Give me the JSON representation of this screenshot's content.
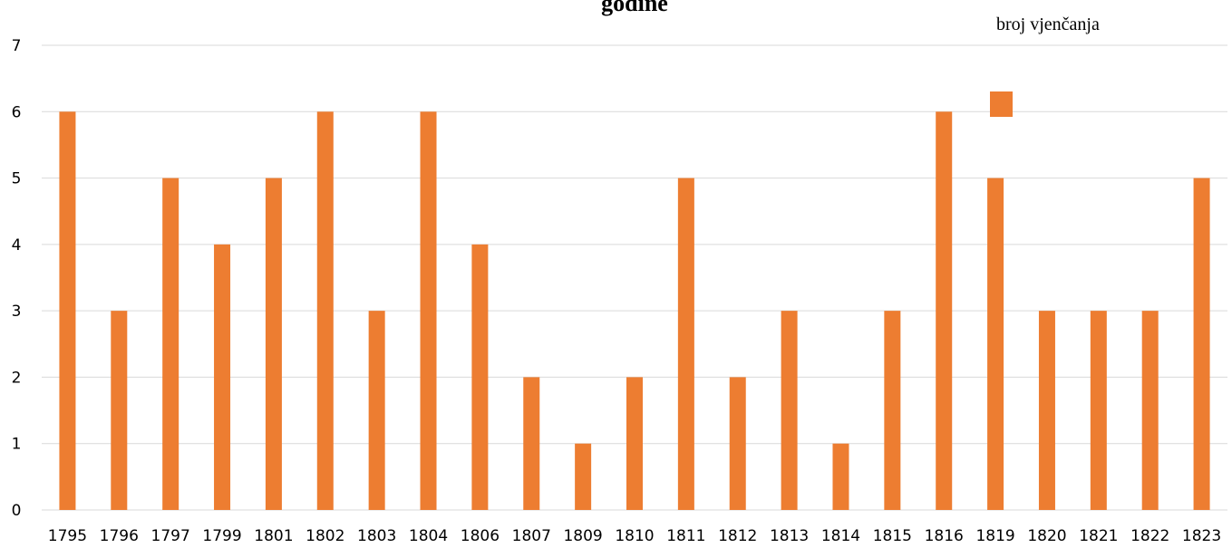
{
  "chart_data": {
    "type": "bar",
    "title": "godine",
    "categories": [
      "1795",
      "1796",
      "1797",
      "1799",
      "1801",
      "1802",
      "1803",
      "1804",
      "1806",
      "1807",
      "1809",
      "1810",
      "1811",
      "1812",
      "1813",
      "1814",
      "1815",
      "1816",
      "1819",
      "1820",
      "1821",
      "1822",
      "1823"
    ],
    "series": [
      {
        "name": "broj vjenčanja",
        "values": [
          6,
          3,
          5,
          4,
          5,
          6,
          3,
          6,
          4,
          2,
          1,
          2,
          5,
          2,
          3,
          1,
          3,
          6,
          5,
          3,
          3,
          3,
          5
        ],
        "color": "#ED7D31"
      }
    ],
    "yticks": [
      "0",
      "1",
      "2",
      "3",
      "4",
      "5",
      "6",
      "7"
    ],
    "ylim": [
      0,
      7
    ],
    "grid": true,
    "legend_position": "top-right",
    "xlabel": "",
    "ylabel": ""
  }
}
